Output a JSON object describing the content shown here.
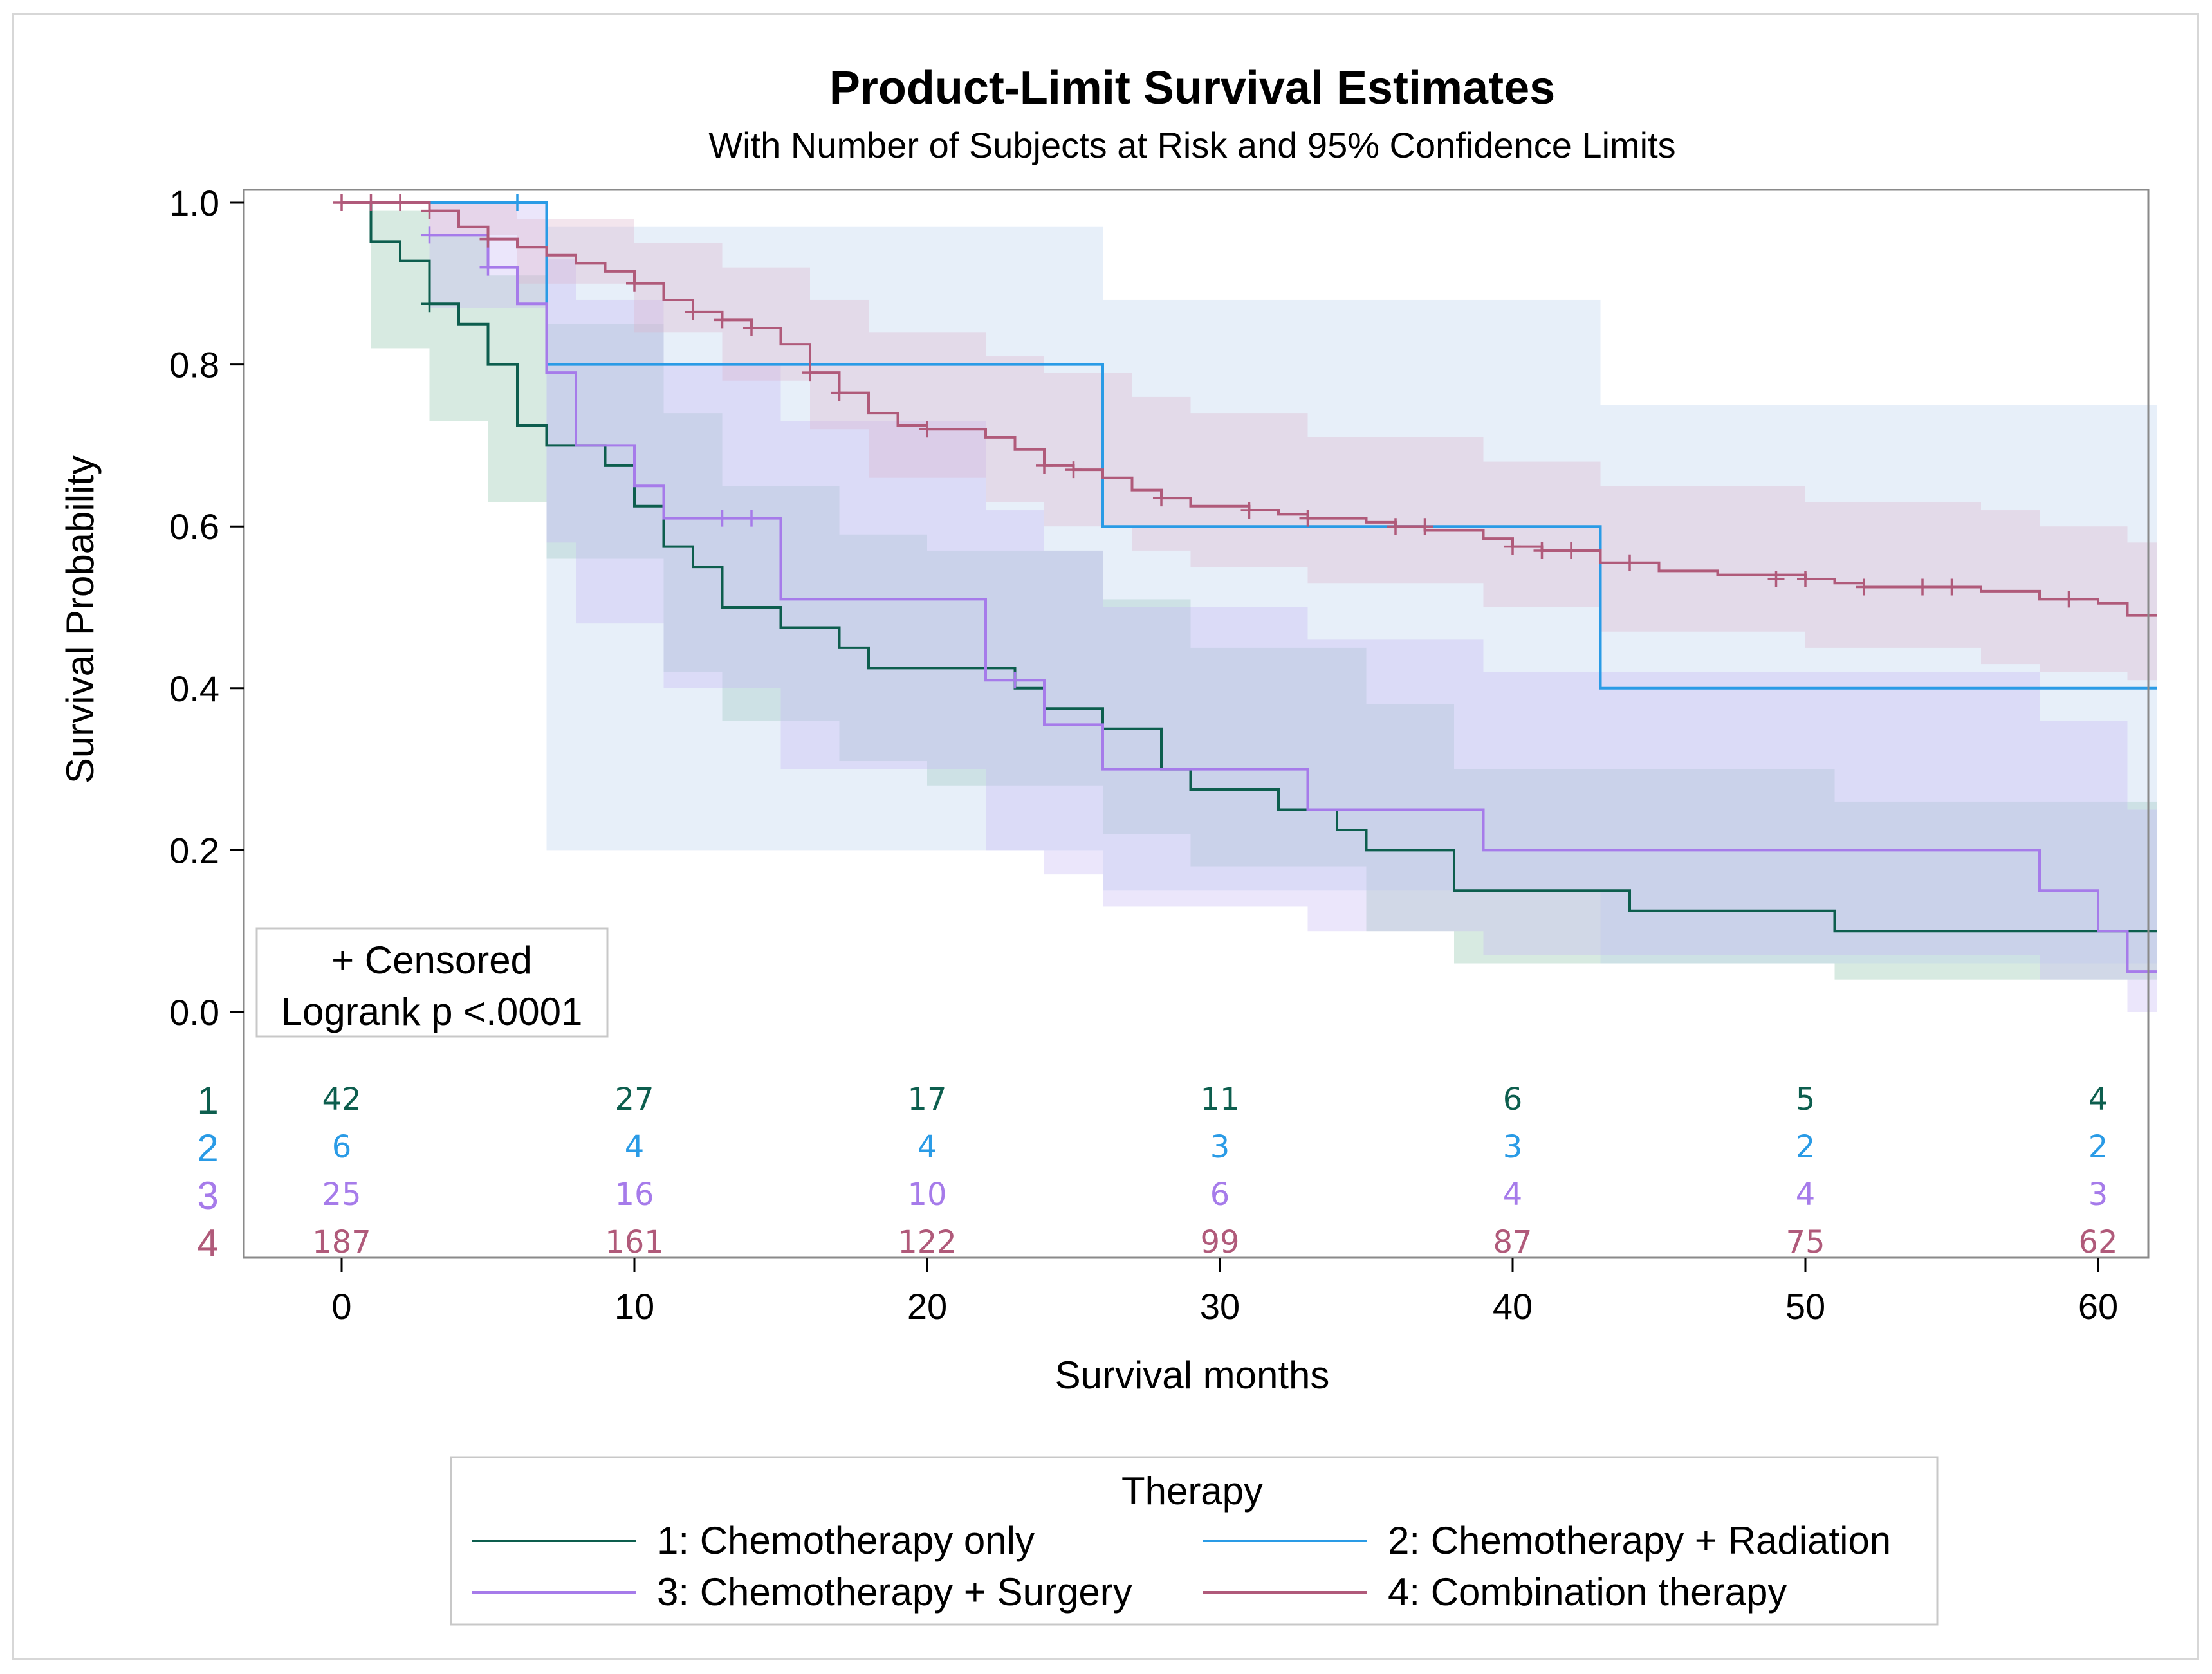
{
  "chart_data": {
    "type": "line",
    "subtype": "kaplan-meier step",
    "title": "Product-Limit Survival Estimates",
    "subtitle": "With Number of Subjects at Risk and 95% Confidence Limits",
    "xlabel": "Survival months",
    "ylabel": "Survival Probability",
    "xlim": [
      -3,
      62
    ],
    "ylim": [
      0,
      1.03
    ],
    "xticks": [
      0,
      10,
      20,
      30,
      40,
      50,
      60
    ],
    "yticks": [
      0.0,
      0.2,
      0.4,
      0.6,
      0.8,
      1.0
    ],
    "ytick_labels": [
      "0.0",
      "0.2",
      "0.4",
      "0.6",
      "0.8",
      "1.0"
    ],
    "inset": {
      "censored_label": "+ Censored",
      "logrank": "Logrank p <.0001"
    },
    "legend": {
      "title": "Therapy",
      "position": "bottom"
    },
    "at_risk_times": [
      0,
      10,
      20,
      30,
      40,
      50,
      60
    ],
    "series": [
      {
        "id": "1",
        "name": "1: Chemotherapy only",
        "color": "#0d5e4e",
        "band_color": "#8cc4aa",
        "at_risk": [
          42,
          27,
          17,
          11,
          6,
          5,
          4
        ],
        "steps": [
          [
            0,
            1.0
          ],
          [
            1,
            0.952
          ],
          [
            2,
            0.928
          ],
          [
            3,
            0.875
          ],
          [
            4,
            0.85
          ],
          [
            5,
            0.8
          ],
          [
            6,
            0.725
          ],
          [
            7,
            0.7
          ],
          [
            9,
            0.675
          ],
          [
            10,
            0.625
          ],
          [
            11,
            0.575
          ],
          [
            12,
            0.55
          ],
          [
            13,
            0.5
          ],
          [
            15,
            0.475
          ],
          [
            17,
            0.45
          ],
          [
            18,
            0.425
          ],
          [
            23,
            0.4
          ],
          [
            24,
            0.375
          ],
          [
            26,
            0.35
          ],
          [
            28,
            0.3
          ],
          [
            29,
            0.275
          ],
          [
            32,
            0.25
          ],
          [
            34,
            0.225
          ],
          [
            35,
            0.2
          ],
          [
            38,
            0.15
          ],
          [
            44,
            0.125
          ],
          [
            51,
            0.1
          ],
          [
            62,
            0.1
          ]
        ],
        "censored": [
          [
            3,
            0.875
          ]
        ],
        "ci_steps": [
          [
            0,
            1.0,
            1.0
          ],
          [
            1,
            0.82,
            0.99
          ],
          [
            3,
            0.73,
            0.96
          ],
          [
            5,
            0.63,
            0.91
          ],
          [
            7,
            0.56,
            0.85
          ],
          [
            11,
            0.42,
            0.74
          ],
          [
            13,
            0.36,
            0.65
          ],
          [
            17,
            0.31,
            0.59
          ],
          [
            20,
            0.28,
            0.57
          ],
          [
            26,
            0.22,
            0.51
          ],
          [
            29,
            0.18,
            0.45
          ],
          [
            35,
            0.1,
            0.38
          ],
          [
            38,
            0.06,
            0.3
          ],
          [
            51,
            0.04,
            0.26
          ],
          [
            62,
            0.04,
            0.26
          ]
        ]
      },
      {
        "id": "2",
        "name": "2: Chemotherapy + Radiation",
        "color": "#2a9be6",
        "band_color": "#b9d2ef",
        "at_risk": [
          6,
          4,
          4,
          3,
          3,
          2,
          2
        ],
        "steps": [
          [
            0,
            1.0
          ],
          [
            7,
            0.8
          ],
          [
            26,
            0.6
          ],
          [
            43,
            0.4
          ],
          [
            62,
            0.4
          ]
        ],
        "censored": [
          [
            6,
            1.0
          ]
        ],
        "ci_steps": [
          [
            3,
            1.0,
            1.0
          ],
          [
            7,
            0.2,
            0.97
          ],
          [
            26,
            0.15,
            0.88
          ],
          [
            43,
            0.06,
            0.75
          ],
          [
            62,
            0.06,
            0.75
          ]
        ]
      },
      {
        "id": "3",
        "name": "3: Chemotherapy + Surgery",
        "color": "#a67bea",
        "band_color": "#c6b8f3",
        "at_risk": [
          25,
          16,
          10,
          6,
          4,
          4,
          3
        ],
        "steps": [
          [
            3,
            0.96
          ],
          [
            5,
            0.92
          ],
          [
            6,
            0.875
          ],
          [
            7,
            0.79
          ],
          [
            8,
            0.7
          ],
          [
            10,
            0.65
          ],
          [
            11,
            0.61
          ],
          [
            15,
            0.51
          ],
          [
            22,
            0.41
          ],
          [
            24,
            0.355
          ],
          [
            26,
            0.3
          ],
          [
            33,
            0.25
          ],
          [
            39,
            0.2
          ],
          [
            58,
            0.15
          ],
          [
            60,
            0.1
          ],
          [
            61,
            0.05
          ],
          [
            62,
            0.05
          ]
        ],
        "censored": [
          [
            3,
            0.96
          ],
          [
            5,
            0.92
          ],
          [
            13,
            0.61
          ],
          [
            14,
            0.61
          ],
          [
            23,
            0.41
          ]
        ],
        "ci_steps": [
          [
            3,
            0.87,
            1.0
          ],
          [
            7,
            0.58,
            0.93
          ],
          [
            8,
            0.48,
            0.88
          ],
          [
            11,
            0.4,
            0.8
          ],
          [
            15,
            0.3,
            0.73
          ],
          [
            22,
            0.2,
            0.62
          ],
          [
            24,
            0.17,
            0.57
          ],
          [
            26,
            0.13,
            0.5
          ],
          [
            33,
            0.1,
            0.46
          ],
          [
            39,
            0.07,
            0.42
          ],
          [
            58,
            0.04,
            0.36
          ],
          [
            61,
            0.0,
            0.25
          ],
          [
            62,
            0.0,
            0.25
          ]
        ]
      },
      {
        "id": "4",
        "name": "4: Combination therapy",
        "color": "#b05a7a",
        "band_color": "#dcb4cb",
        "at_risk": [
          187,
          161,
          122,
          99,
          87,
          75,
          62
        ],
        "steps": [
          [
            0,
            1.0
          ],
          [
            3,
            0.99
          ],
          [
            4,
            0.97
          ],
          [
            5,
            0.955
          ],
          [
            6,
            0.945
          ],
          [
            7,
            0.935
          ],
          [
            8,
            0.925
          ],
          [
            9,
            0.915
          ],
          [
            10,
            0.9
          ],
          [
            11,
            0.88
          ],
          [
            12,
            0.865
          ],
          [
            13,
            0.855
          ],
          [
            14,
            0.845
          ],
          [
            15,
            0.825
          ],
          [
            16,
            0.79
          ],
          [
            17,
            0.765
          ],
          [
            18,
            0.74
          ],
          [
            19,
            0.725
          ],
          [
            20,
            0.72
          ],
          [
            22,
            0.71
          ],
          [
            23,
            0.695
          ],
          [
            24,
            0.675
          ],
          [
            25,
            0.67
          ],
          [
            26,
            0.66
          ],
          [
            27,
            0.645
          ],
          [
            28,
            0.635
          ],
          [
            29,
            0.625
          ],
          [
            31,
            0.62
          ],
          [
            32,
            0.615
          ],
          [
            33,
            0.61
          ],
          [
            35,
            0.605
          ],
          [
            36,
            0.6
          ],
          [
            37,
            0.595
          ],
          [
            39,
            0.585
          ],
          [
            40,
            0.575
          ],
          [
            41,
            0.57
          ],
          [
            43,
            0.555
          ],
          [
            45,
            0.545
          ],
          [
            47,
            0.54
          ],
          [
            50,
            0.535
          ],
          [
            51,
            0.53
          ],
          [
            52,
            0.525
          ],
          [
            56,
            0.52
          ],
          [
            58,
            0.51
          ],
          [
            60,
            0.505
          ],
          [
            61,
            0.49
          ],
          [
            62,
            0.49
          ]
        ],
        "censored": [
          [
            0,
            1.0
          ],
          [
            1,
            1.0
          ],
          [
            2,
            1.0
          ],
          [
            3,
            0.99
          ],
          [
            5,
            0.955
          ],
          [
            10,
            0.9
          ],
          [
            12,
            0.865
          ],
          [
            13,
            0.855
          ],
          [
            14,
            0.845
          ],
          [
            16,
            0.79
          ],
          [
            17,
            0.765
          ],
          [
            20,
            0.72
          ],
          [
            24,
            0.675
          ],
          [
            25,
            0.67
          ],
          [
            28,
            0.635
          ],
          [
            31,
            0.62
          ],
          [
            33,
            0.61
          ],
          [
            36,
            0.6
          ],
          [
            37,
            0.6
          ],
          [
            40,
            0.575
          ],
          [
            41,
            0.57
          ],
          [
            42,
            0.57
          ],
          [
            44,
            0.555
          ],
          [
            49,
            0.535
          ],
          [
            50,
            0.535
          ],
          [
            52,
            0.525
          ],
          [
            54,
            0.525
          ],
          [
            55,
            0.525
          ],
          [
            59,
            0.51
          ]
        ],
        "ci_steps": [
          [
            0,
            1.0,
            1.0
          ],
          [
            3,
            0.96,
            1.0
          ],
          [
            6,
            0.9,
            0.98
          ],
          [
            10,
            0.84,
            0.95
          ],
          [
            13,
            0.78,
            0.92
          ],
          [
            16,
            0.72,
            0.88
          ],
          [
            18,
            0.66,
            0.84
          ],
          [
            22,
            0.63,
            0.81
          ],
          [
            24,
            0.6,
            0.79
          ],
          [
            27,
            0.57,
            0.76
          ],
          [
            29,
            0.55,
            0.74
          ],
          [
            33,
            0.53,
            0.71
          ],
          [
            39,
            0.5,
            0.68
          ],
          [
            43,
            0.47,
            0.65
          ],
          [
            50,
            0.45,
            0.63
          ],
          [
            56,
            0.43,
            0.62
          ],
          [
            58,
            0.42,
            0.6
          ],
          [
            61,
            0.41,
            0.58
          ],
          [
            62,
            0.41,
            0.58
          ]
        ]
      }
    ]
  }
}
